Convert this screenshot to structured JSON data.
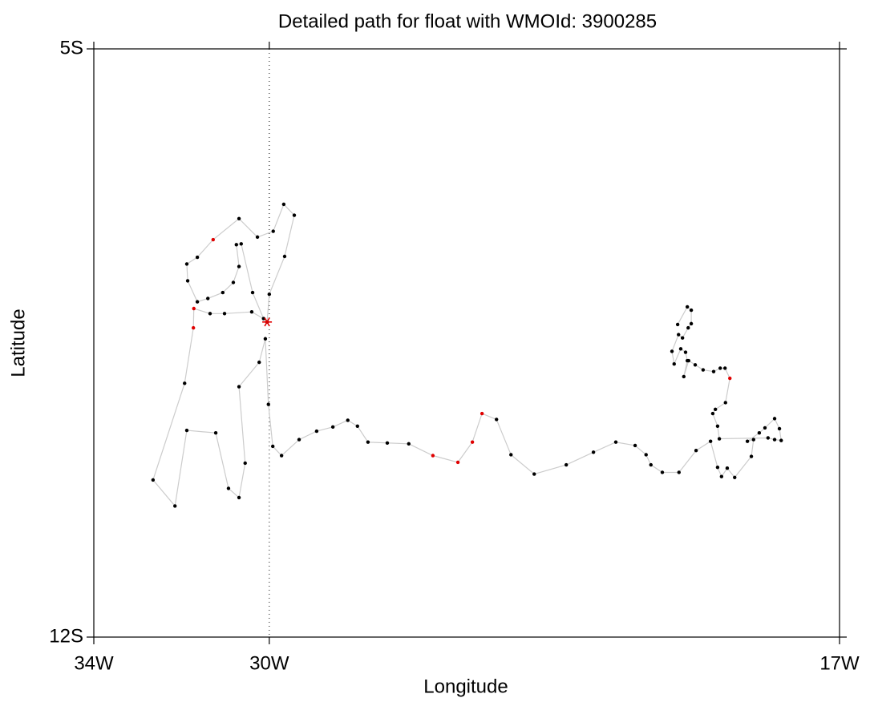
{
  "chart_data": {
    "type": "path",
    "title": "Detailed path for float with WMOId: 3900285",
    "xlabel": "Longitude",
    "ylabel": "Latitude",
    "xlim": [
      -34,
      -17
    ],
    "ylim": [
      -12,
      -5
    ],
    "xticks": [
      {
        "value": -34,
        "label": "34W"
      },
      {
        "value": -30,
        "label": "30W"
      },
      {
        "value": -17,
        "label": "17W"
      }
    ],
    "yticks": [
      {
        "value": -5,
        "label": "5S"
      },
      {
        "value": -12,
        "label": "12S"
      }
    ],
    "vline": -30,
    "line_color": "#cccccc",
    "start_color": "#e00000",
    "series": [
      {
        "x": [
          -30.05,
          -30.0,
          -29.65,
          -29.43,
          -29.67,
          -29.91,
          -30.27,
          -30.69,
          -31.28,
          -31.64,
          -31.88,
          -31.86,
          -31.64,
          -31.4,
          -31.06,
          -30.82,
          -30.69,
          -30.75,
          -30.64,
          -30.38,
          -30.13,
          -30.4,
          -31.02,
          -31.35,
          -31.72,
          -31.73,
          -31.93,
          -32.65,
          -32.15,
          -31.88,
          -31.22,
          -30.93,
          -30.69,
          -30.55,
          -30.69,
          -30.23,
          -30.09,
          -30.02,
          -29.92,
          -29.72,
          -29.32,
          -28.92,
          -28.55,
          -28.21,
          -27.99,
          -27.75,
          -27.31,
          -26.82,
          -26.27,
          -25.7,
          -25.37,
          -25.15,
          -24.82,
          -24.49,
          -23.96,
          -23.23,
          -22.61,
          -22.1,
          -21.66,
          -21.41,
          -21.3,
          -21.04,
          -20.66,
          -20.27,
          -19.94,
          -19.78,
          -19.69,
          -19.56,
          -19.39,
          -19.01,
          -18.96,
          -19.1,
          -18.83,
          -18.7,
          -18.48,
          -18.37,
          -18.33,
          -18.48,
          -18.63,
          -19.74,
          -19.78,
          -19.89,
          -19.83,
          -19.6,
          -19.5,
          -19.61,
          -19.72,
          -19.87,
          -20.11,
          -20.29,
          -20.44,
          -20.55,
          -20.47,
          -20.51,
          -20.62,
          -20.77,
          -20.82,
          -20.67,
          -20.58,
          -20.45,
          -20.38,
          -20.38,
          -20.47,
          -20.69
        ],
        "y": [
          -8.25,
          -7.92,
          -7.47,
          -6.98,
          -6.85,
          -7.17,
          -7.24,
          -7.02,
          -7.27,
          -7.48,
          -7.56,
          -7.76,
          -8.01,
          -7.97,
          -7.9,
          -7.78,
          -7.59,
          -7.33,
          -7.32,
          -7.9,
          -8.21,
          -8.13,
          -8.15,
          -8.15,
          -8.09,
          -8.32,
          -8.98,
          -10.13,
          -10.44,
          -9.54,
          -9.57,
          -10.23,
          -10.34,
          -9.93,
          -9.02,
          -8.73,
          -8.45,
          -9.23,
          -9.73,
          -9.84,
          -9.65,
          -9.55,
          -9.5,
          -9.42,
          -9.49,
          -9.68,
          -9.69,
          -9.7,
          -9.84,
          -9.92,
          -9.68,
          -9.34,
          -9.41,
          -9.83,
          -10.06,
          -9.95,
          -9.8,
          -9.68,
          -9.72,
          -9.83,
          -9.95,
          -10.04,
          -10.04,
          -9.78,
          -9.67,
          -9.98,
          -10.09,
          -9.99,
          -10.1,
          -9.85,
          -9.65,
          -9.67,
          -9.57,
          -9.51,
          -9.4,
          -9.52,
          -9.66,
          -9.65,
          -9.63,
          -9.64,
          -9.49,
          -9.34,
          -9.29,
          -9.21,
          -8.92,
          -8.8,
          -8.8,
          -8.84,
          -8.82,
          -8.76,
          -8.71,
          -8.9,
          -8.71,
          -8.61,
          -8.57,
          -8.75,
          -8.6,
          -8.4,
          -8.44,
          -8.32,
          -8.27,
          -8.11,
          -8.07,
          -8.28
        ],
        "colors": [
          "#000000",
          "#000000",
          "#000000",
          "#000000",
          "#000000",
          "#000000",
          "#000000",
          "#000000",
          "#e00000",
          "#000000",
          "#000000",
          "#000000",
          "#000000",
          "#000000",
          "#000000",
          "#000000",
          "#000000",
          "#000000",
          "#000000",
          "#000000",
          "#000000",
          "#000000",
          "#000000",
          "#000000",
          "#e00000",
          "#e00000",
          "#000000",
          "#000000",
          "#000000",
          "#000000",
          "#000000",
          "#000000",
          "#000000",
          "#000000",
          "#000000",
          "#000000",
          "#000000",
          "#000000",
          "#000000",
          "#000000",
          "#000000",
          "#000000",
          "#000000",
          "#000000",
          "#000000",
          "#000000",
          "#000000",
          "#000000",
          "#e00000",
          "#e00000",
          "#e00000",
          "#e00000",
          "#000000",
          "#000000",
          "#000000",
          "#000000",
          "#000000",
          "#000000",
          "#000000",
          "#000000",
          "#000000",
          "#000000",
          "#000000",
          "#000000",
          "#000000",
          "#000000",
          "#000000",
          "#000000",
          "#000000",
          "#000000",
          "#000000",
          "#000000",
          "#000000",
          "#000000",
          "#000000",
          "#000000",
          "#000000",
          "#000000",
          "#000000",
          "#000000",
          "#000000",
          "#000000",
          "#000000",
          "#000000",
          "#e00000",
          "#000000",
          "#000000",
          "#000000",
          "#000000",
          "#000000",
          "#000000",
          "#000000",
          "#000000",
          "#000000",
          "#000000",
          "#000000",
          "#000000",
          "#000000",
          "#000000",
          "#000000",
          "#000000",
          "#000000",
          "#000000",
          "#000000"
        ]
      }
    ]
  }
}
